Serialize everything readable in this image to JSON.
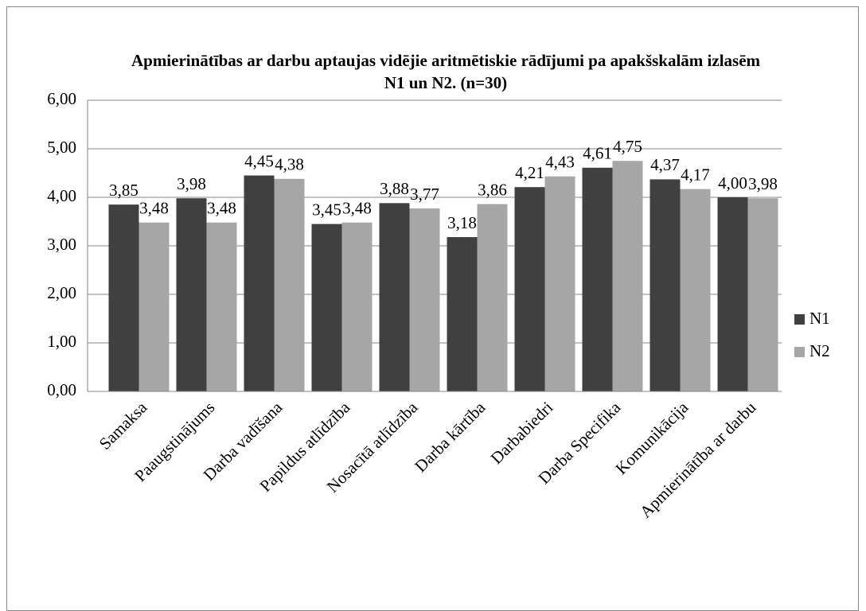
{
  "chart_data": {
    "type": "bar",
    "title": "Apmierinātības ar darbu aptaujas vidējie aritmētiskie rādījumi pa apakšskalām izlasēm N1 un N2. (n=30)",
    "categories": [
      "Samaksa",
      "Paaugstinājums",
      "Darba vadīšana",
      "Papildus atlīdzība",
      "Nosacītā atlīdzība",
      "Darba kārtība",
      "Darbabiedri",
      "Darba Specifika",
      "Komunikācija",
      "Apmierinātība ar darbu"
    ],
    "series": [
      {
        "name": "N1",
        "color": "#404040",
        "values": [
          3.85,
          3.98,
          4.45,
          3.45,
          3.88,
          3.18,
          4.21,
          4.61,
          4.37,
          4.0
        ],
        "value_labels": [
          "3,85",
          "3,98",
          "4,45",
          "3,45",
          "3,88",
          "3,18",
          "4,21",
          "4,61",
          "4,37",
          "4,00"
        ]
      },
      {
        "name": "N2",
        "color": "#a6a6a6",
        "values": [
          3.48,
          3.48,
          4.38,
          3.48,
          3.77,
          3.86,
          4.43,
          4.75,
          4.17,
          3.98
        ],
        "value_labels": [
          "3,48",
          "3,48",
          "4,38",
          "3,48",
          "3,77",
          "3,86",
          "4,43",
          "4,75",
          "4,17",
          "3,98"
        ]
      }
    ],
    "ylim": [
      0,
      6
    ],
    "yticks": [
      {
        "value": 0,
        "label": "0,00"
      },
      {
        "value": 1,
        "label": "1,00"
      },
      {
        "value": 2,
        "label": "2,00"
      },
      {
        "value": 3,
        "label": "3,00"
      },
      {
        "value": 4,
        "label": "4,00"
      },
      {
        "value": 5,
        "label": "5,00"
      },
      {
        "value": 6,
        "label": "6,00"
      }
    ],
    "grid": true,
    "legend": "right"
  }
}
